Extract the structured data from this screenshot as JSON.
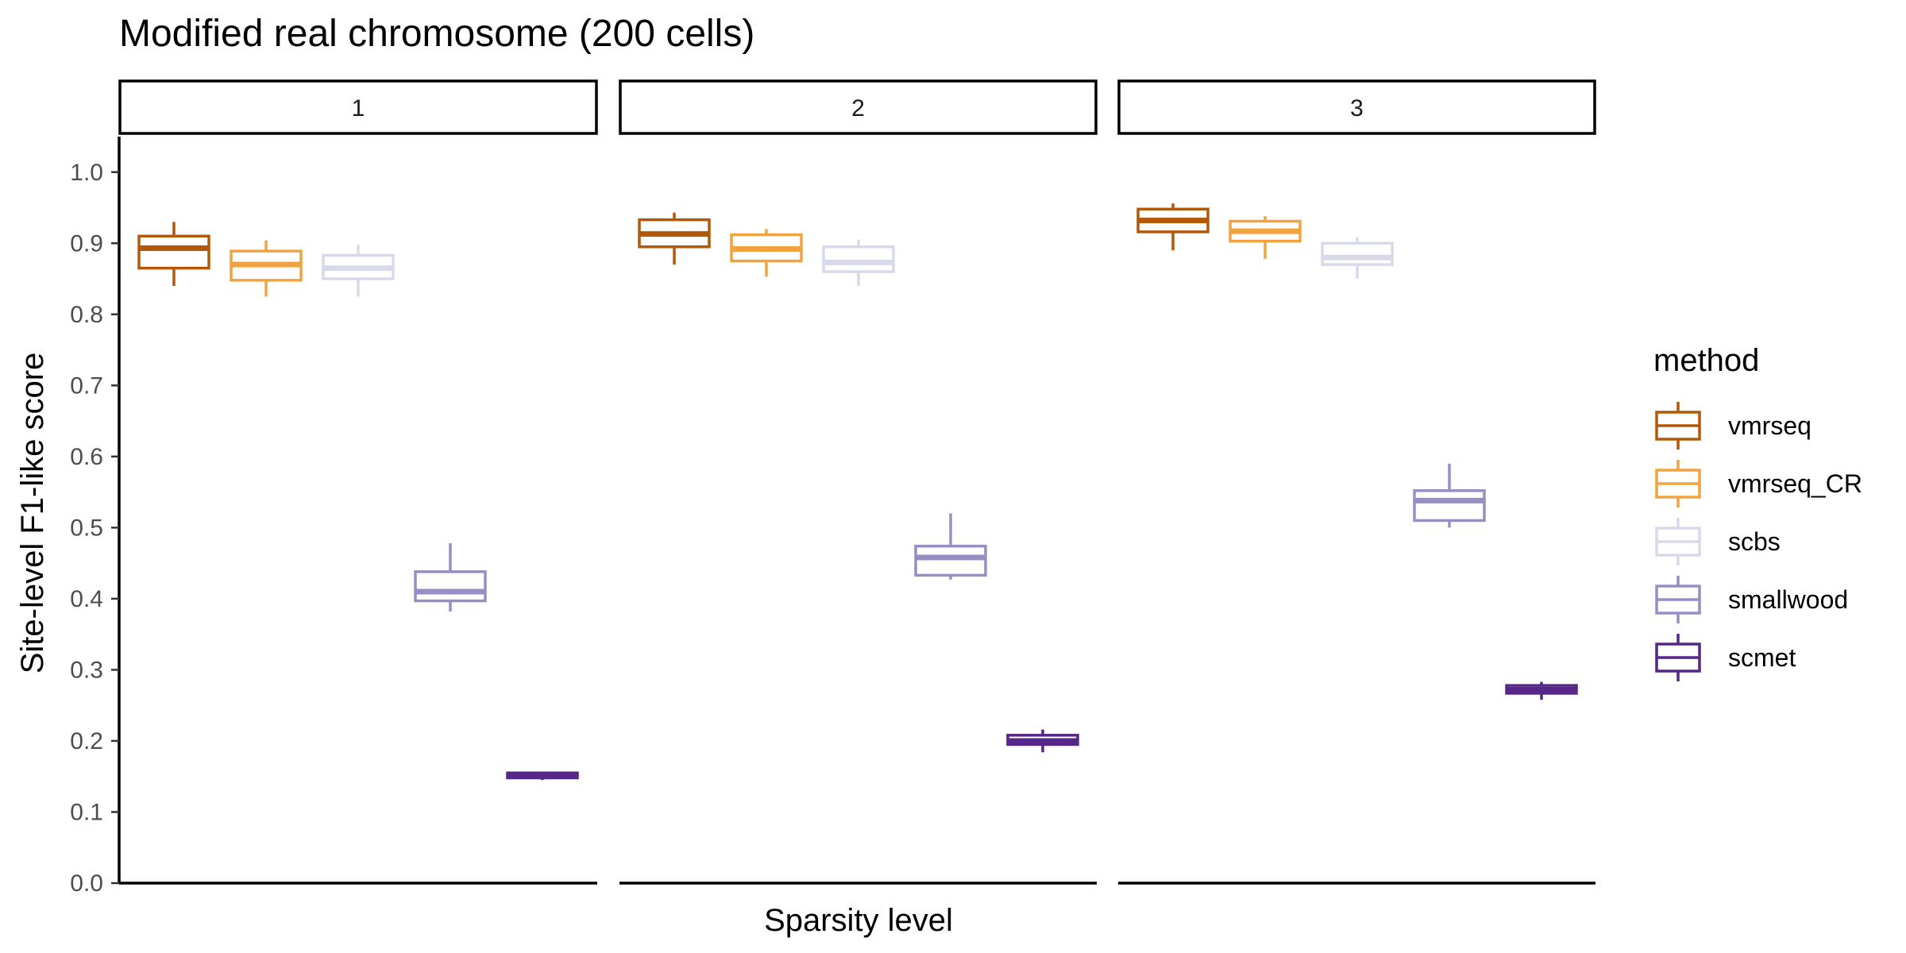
{
  "chart_data": {
    "type": "box",
    "title": "Modified real chromosome (200 cells)",
    "xlabel": "Sparsity level",
    "ylabel": "Site-level F1-like score",
    "ylim": [
      0,
      1.05
    ],
    "y_ticks": [
      "0.0",
      "0.1",
      "0.2",
      "0.3",
      "0.4",
      "0.5",
      "0.6",
      "0.7",
      "0.8",
      "0.9",
      "1.0"
    ],
    "facets": [
      "1",
      "2",
      "3"
    ],
    "grid": false,
    "legend": {
      "title": "method",
      "position": "right",
      "items": [
        {
          "name": "vmrseq",
          "color": "#b35806"
        },
        {
          "name": "vmrseq_CR",
          "color": "#f1a340"
        },
        {
          "name": "scbs",
          "color": "#d8daeb"
        },
        {
          "name": "smallwood",
          "color": "#998ec3"
        },
        {
          "name": "scmet",
          "color": "#542788"
        }
      ]
    },
    "series": [
      {
        "name": "vmrseq",
        "boxes": [
          {
            "facet": "1",
            "min": 0.84,
            "q1": 0.865,
            "median": 0.893,
            "q3": 0.91,
            "max": 0.93
          },
          {
            "facet": "2",
            "min": 0.87,
            "q1": 0.895,
            "median": 0.913,
            "q3": 0.933,
            "max": 0.943
          },
          {
            "facet": "3",
            "min": 0.89,
            "q1": 0.916,
            "median": 0.932,
            "q3": 0.948,
            "max": 0.956
          }
        ]
      },
      {
        "name": "vmrseq_CR",
        "boxes": [
          {
            "facet": "1",
            "min": 0.825,
            "q1": 0.848,
            "median": 0.87,
            "q3": 0.889,
            "max": 0.904
          },
          {
            "facet": "2",
            "min": 0.853,
            "q1": 0.875,
            "median": 0.892,
            "q3": 0.912,
            "max": 0.92
          },
          {
            "facet": "3",
            "min": 0.878,
            "q1": 0.903,
            "median": 0.917,
            "q3": 0.931,
            "max": 0.938
          }
        ]
      },
      {
        "name": "scbs",
        "boxes": [
          {
            "facet": "1",
            "min": 0.825,
            "q1": 0.85,
            "median": 0.865,
            "q3": 0.883,
            "max": 0.898
          },
          {
            "facet": "2",
            "min": 0.84,
            "q1": 0.86,
            "median": 0.873,
            "q3": 0.895,
            "max": 0.905
          },
          {
            "facet": "3",
            "min": 0.85,
            "q1": 0.87,
            "median": 0.88,
            "q3": 0.9,
            "max": 0.908
          }
        ]
      },
      {
        "name": "smallwood",
        "boxes": [
          {
            "facet": "1",
            "min": 0.382,
            "q1": 0.397,
            "median": 0.41,
            "q3": 0.438,
            "max": 0.478
          },
          {
            "facet": "2",
            "min": 0.427,
            "q1": 0.433,
            "median": 0.458,
            "q3": 0.474,
            "max": 0.52
          },
          {
            "facet": "3",
            "min": 0.5,
            "q1": 0.51,
            "median": 0.538,
            "q3": 0.552,
            "max": 0.59
          }
        ]
      },
      {
        "name": "scmet",
        "boxes": [
          {
            "facet": "1",
            "min": 0.145,
            "q1": 0.148,
            "median": 0.151,
            "q3": 0.155,
            "max": 0.157
          },
          {
            "facet": "2",
            "min": 0.184,
            "q1": 0.195,
            "median": 0.2,
            "q3": 0.208,
            "max": 0.216
          },
          {
            "facet": "3",
            "min": 0.258,
            "q1": 0.267,
            "median": 0.272,
            "q3": 0.278,
            "max": 0.283
          }
        ]
      }
    ]
  }
}
